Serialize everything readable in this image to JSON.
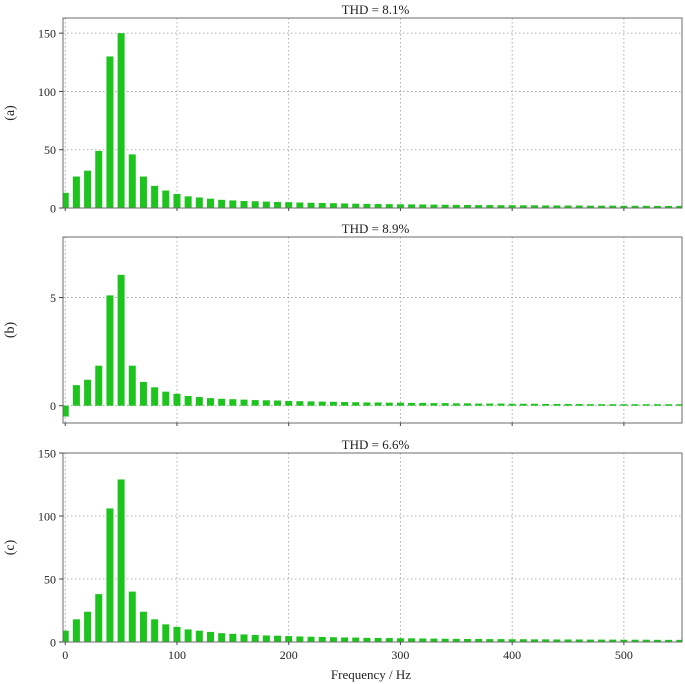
{
  "xlabel": "Frequency / Hz",
  "bar_color": "#1ec41e",
  "chart_data": [
    {
      "type": "bar",
      "panel_label": "(a)",
      "title": "THD = 8.1%",
      "xlim": [
        -2,
        552
      ],
      "ylim": [
        0,
        163
      ],
      "yticks": [
        0,
        50,
        100,
        150
      ],
      "xticks": [
        0,
        100,
        200,
        300,
        400,
        500
      ],
      "show_xticklabels": false,
      "grid": true,
      "x": [
        0,
        10,
        20,
        30,
        40,
        50,
        60,
        70,
        80,
        90,
        100,
        110,
        120,
        130,
        140,
        150,
        160,
        170,
        180,
        190,
        200,
        210,
        220,
        230,
        240,
        250,
        260,
        270,
        280,
        290,
        300,
        310,
        320,
        330,
        340,
        350,
        360,
        370,
        380,
        390,
        400,
        410,
        420,
        430,
        440,
        450,
        460,
        470,
        480,
        490,
        500,
        510,
        520,
        530,
        540,
        550
      ],
      "values": [
        13,
        27,
        32,
        49,
        130,
        150,
        46,
        27,
        19,
        15,
        12,
        10,
        9,
        8,
        7,
        6.5,
        6,
        5.8,
        5.5,
        5.2,
        5,
        4.7,
        4.5,
        4.3,
        4.1,
        3.9,
        3.7,
        3.5,
        3.4,
        3.3,
        3.2,
        3.1,
        3,
        2.9,
        2.8,
        2.7,
        2.6,
        2.5,
        2.5,
        2.4,
        2.4,
        2.3,
        2.3,
        2.2,
        2.2,
        2.1,
        2.1,
        2,
        2,
        2,
        1.9,
        1.9,
        1.9,
        1.8,
        1.8,
        1.8
      ]
    },
    {
      "type": "bar",
      "panel_label": "(b)",
      "title": "THD = 8.9%",
      "xlim": [
        -2,
        552
      ],
      "ylim": [
        -0.8,
        7.8
      ],
      "yticks": [
        0,
        5
      ],
      "xticks": [
        0,
        100,
        200,
        300,
        400,
        500
      ],
      "show_xticklabels": false,
      "grid": true,
      "x": [
        0,
        10,
        20,
        30,
        40,
        50,
        60,
        70,
        80,
        90,
        100,
        110,
        120,
        130,
        140,
        150,
        160,
        170,
        180,
        190,
        200,
        210,
        220,
        230,
        240,
        250,
        260,
        270,
        280,
        290,
        300,
        310,
        320,
        330,
        340,
        350,
        360,
        370,
        380,
        390,
        400,
        410,
        420,
        430,
        440,
        450,
        460,
        470,
        480,
        490,
        500,
        510,
        520,
        530,
        540,
        550
      ],
      "values": [
        -0.5,
        0.95,
        1.2,
        1.85,
        5.1,
        6.05,
        1.85,
        1.1,
        0.85,
        0.65,
        0.55,
        0.45,
        0.4,
        0.35,
        0.32,
        0.3,
        0.28,
        0.26,
        0.25,
        0.24,
        0.22,
        0.21,
        0.2,
        0.19,
        0.18,
        0.17,
        0.16,
        0.15,
        0.15,
        0.14,
        0.14,
        0.13,
        0.13,
        0.12,
        0.12,
        0.11,
        0.11,
        0.1,
        0.1,
        0.1,
        0.09,
        0.09,
        0.09,
        0.08,
        0.08,
        0.08,
        0.08,
        0.07,
        0.07,
        0.07,
        0.07,
        0.06,
        0.06,
        0.06,
        0.06,
        0.06
      ]
    },
    {
      "type": "bar",
      "panel_label": "(c)",
      "title": "THD = 6.6%",
      "xlim": [
        -2,
        552
      ],
      "ylim": [
        0,
        150
      ],
      "yticks": [
        0,
        50,
        100,
        150
      ],
      "xticks": [
        0,
        100,
        200,
        300,
        400,
        500
      ],
      "show_xticklabels": true,
      "grid": true,
      "x": [
        0,
        10,
        20,
        30,
        40,
        50,
        60,
        70,
        80,
        90,
        100,
        110,
        120,
        130,
        140,
        150,
        160,
        170,
        180,
        190,
        200,
        210,
        220,
        230,
        240,
        250,
        260,
        270,
        280,
        290,
        300,
        310,
        320,
        330,
        340,
        350,
        360,
        370,
        380,
        390,
        400,
        410,
        420,
        430,
        440,
        450,
        460,
        470,
        480,
        490,
        500,
        510,
        520,
        530,
        540,
        550
      ],
      "values": [
        9,
        18,
        24,
        38,
        106,
        129,
        40,
        24,
        18,
        14,
        12,
        10,
        9,
        8,
        7,
        6.5,
        6,
        5.6,
        5.2,
        5,
        4.7,
        4.4,
        4.2,
        4,
        3.8,
        3.6,
        3.5,
        3.3,
        3.2,
        3.1,
        3,
        2.9,
        2.8,
        2.7,
        2.6,
        2.5,
        2.4,
        2.4,
        2.3,
        2.3,
        2.2,
        2.2,
        2.1,
        2.1,
        2,
        2,
        2,
        1.9,
        1.9,
        1.9,
        1.8,
        1.8,
        1.8,
        1.7,
        1.7,
        1.7
      ]
    }
  ]
}
